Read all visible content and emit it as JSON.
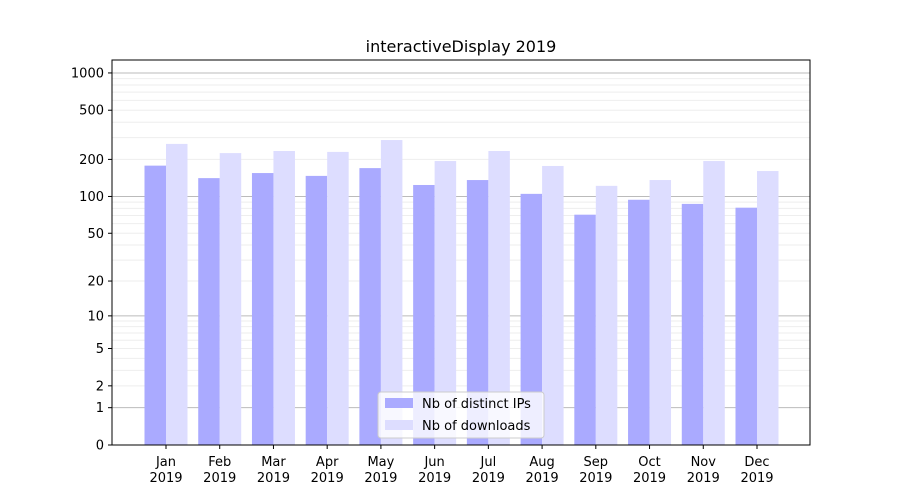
{
  "chart_data": {
    "type": "bar",
    "title": "interactiveDisplay 2019",
    "xlabel": "",
    "ylabel": "",
    "yscale": "symlog (log10(1+y))",
    "ylim": [
      0,
      1270
    ],
    "yticks": [
      0,
      1,
      2,
      5,
      10,
      20,
      50,
      100,
      200,
      500,
      1000
    ],
    "grid": true,
    "legend_placement": "lower center",
    "categories": [
      "Jan\n2019",
      "Feb\n2019",
      "Mar\n2019",
      "Apr\n2019",
      "May\n2019",
      "Jun\n2019",
      "Jul\n2019",
      "Aug\n2019",
      "Sep\n2019",
      "Oct\n2019",
      "Nov\n2019",
      "Dec\n2019"
    ],
    "series": [
      {
        "name": "Nb of distinct IPs",
        "color": "#aaaaff",
        "values": [
          178,
          141,
          155,
          147,
          170,
          124,
          136,
          105,
          71,
          94,
          87,
          81
        ]
      },
      {
        "name": "Nb of downloads",
        "color": "#ddddff",
        "values": [
          267,
          225,
          234,
          230,
          287,
          194,
          234,
          177,
          122,
          136,
          194,
          161
        ]
      }
    ]
  }
}
